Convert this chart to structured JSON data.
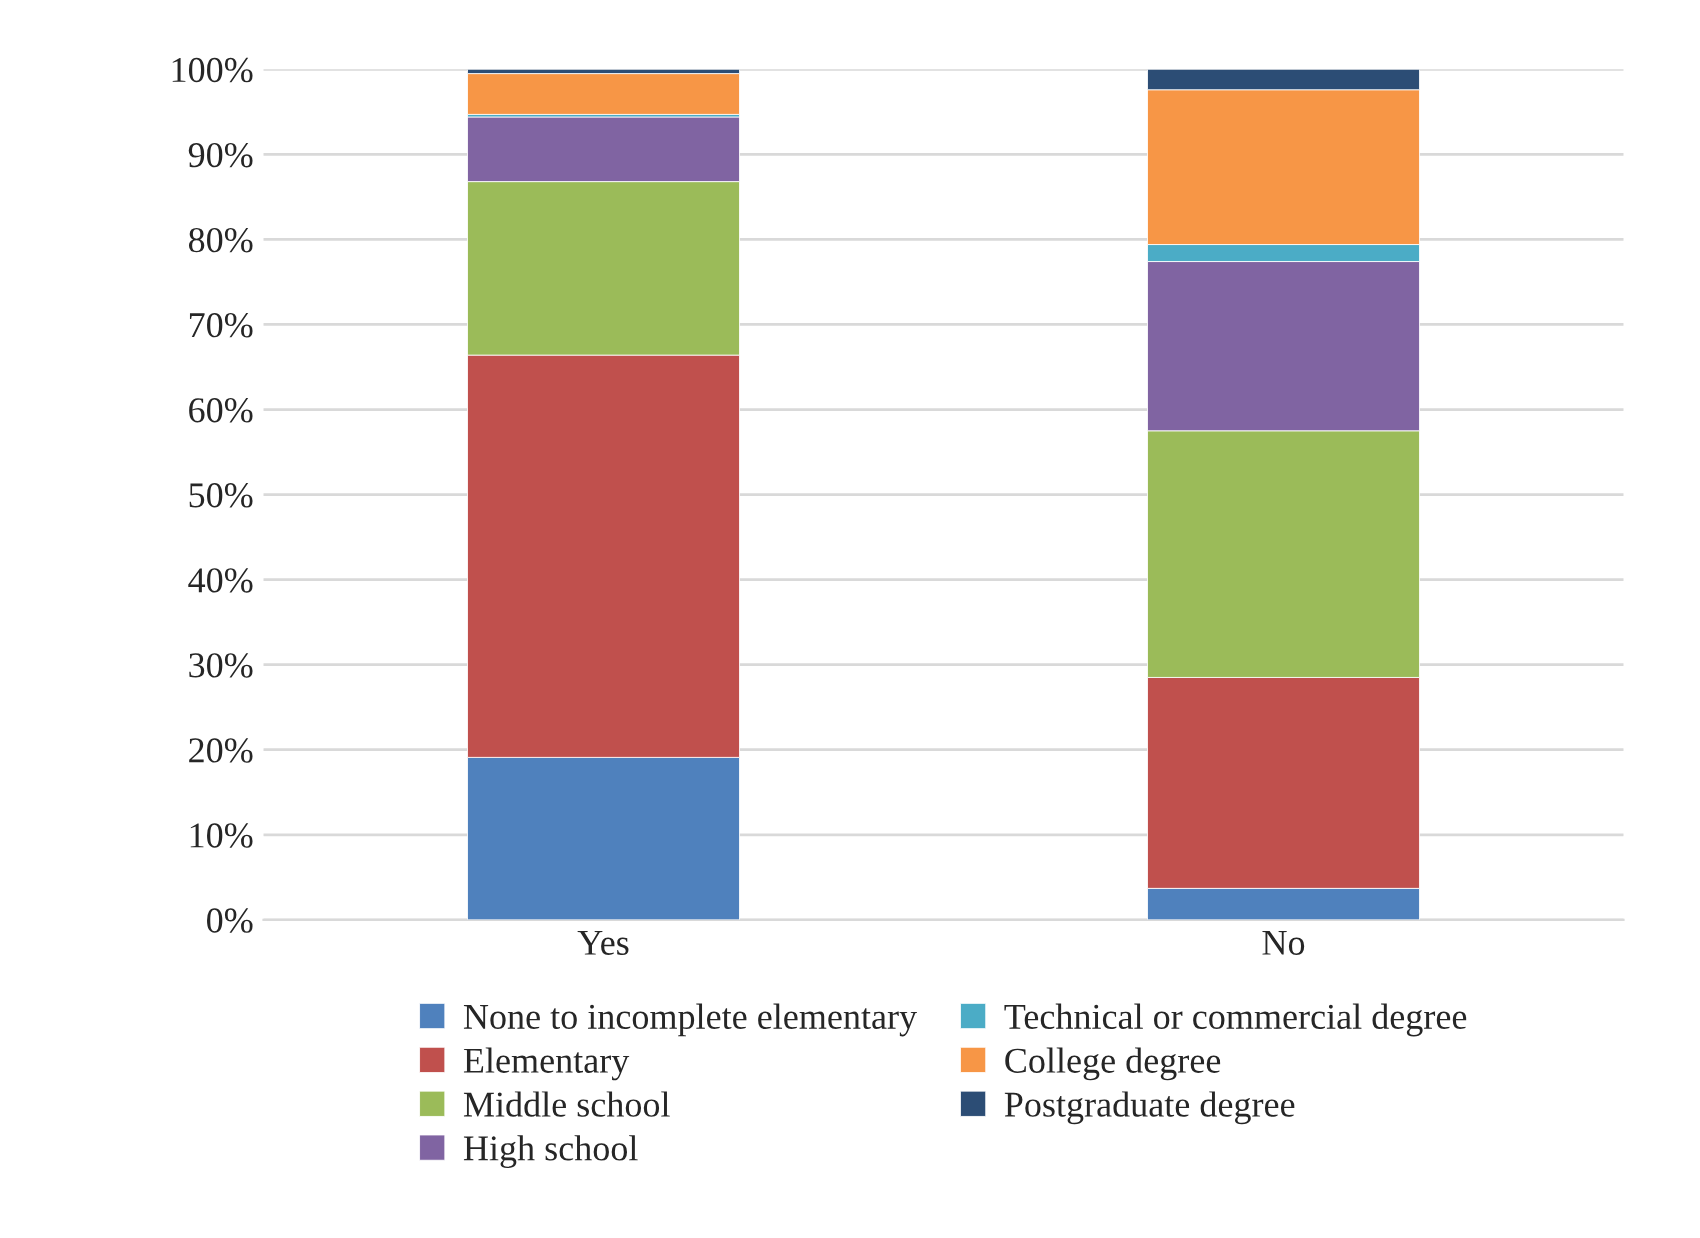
{
  "chart_data": {
    "type": "bar",
    "stacked": true,
    "categories": [
      "Yes",
      "No"
    ],
    "series": [
      {
        "name": "None to incomplete elementary",
        "color": "#4f81bd",
        "values": [
          19.1,
          3.7
        ]
      },
      {
        "name": "Elementary",
        "color": "#c0504d",
        "values": [
          47.3,
          24.8
        ]
      },
      {
        "name": "Middle school",
        "color": "#9bbb59",
        "values": [
          20.4,
          29.0
        ]
      },
      {
        "name": "High school",
        "color": "#8064a2",
        "values": [
          7.6,
          19.9
        ]
      },
      {
        "name": "Technical or commercial degree",
        "color": "#4bacc6",
        "values": [
          0.3,
          2.0
        ]
      },
      {
        "name": "College degree",
        "color": "#f79646",
        "values": [
          4.8,
          18.2
        ]
      },
      {
        "name": "Postgraduate degree",
        "color": "#2c4d75",
        "values": [
          0.5,
          2.4
        ]
      }
    ],
    "ylim": [
      0,
      100
    ],
    "yticks": [
      {
        "value": 0,
        "label": "0%"
      },
      {
        "value": 10,
        "label": "10%"
      },
      {
        "value": 20,
        "label": "20%"
      },
      {
        "value": 30,
        "label": "30%"
      },
      {
        "value": 40,
        "label": "40%"
      },
      {
        "value": 50,
        "label": "50%"
      },
      {
        "value": 60,
        "label": "60%"
      },
      {
        "value": 70,
        "label": "70%"
      },
      {
        "value": 80,
        "label": "80%"
      },
      {
        "value": 90,
        "label": "90%"
      },
      {
        "value": 100,
        "label": "100%"
      }
    ],
    "grid": "y",
    "legend": "bottom"
  }
}
